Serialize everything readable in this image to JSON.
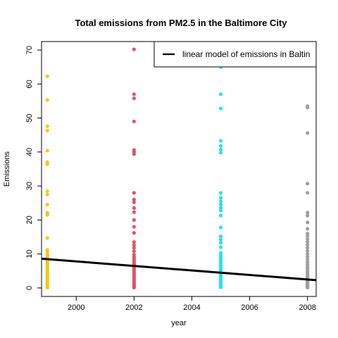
{
  "chart_data": {
    "type": "scatter",
    "title": "Total emissions from PM2.5 in the Baltimore City",
    "xlabel": "year",
    "ylabel": "Emissions",
    "xlim": [
      1998.8,
      2008.3
    ],
    "ylim": [
      -2.5,
      72.5
    ],
    "xticks": [
      2000,
      2002,
      2004,
      2006,
      2008
    ],
    "yticks": [
      0,
      10,
      20,
      30,
      40,
      50,
      60,
      70
    ],
    "grid": false,
    "legend": {
      "position": "top-right",
      "entries": [
        {
          "label": "linear model of emissions in Baltin",
          "color": "#000000"
        }
      ]
    },
    "series": [
      {
        "x": 1999,
        "color": "#F5C710",
        "values": [
          62.3,
          55.3,
          47.6,
          46.3,
          40.4,
          37.0,
          36.4,
          28.5,
          27.5,
          24.5,
          22.1,
          21.5,
          14.7,
          11.2,
          10.4,
          9.6,
          9.0,
          8.4,
          7.8,
          7.3,
          6.9,
          6.5,
          6.0,
          5.6,
          5.2,
          4.8,
          4.4,
          4.0,
          3.6,
          3.2,
          2.8,
          2.4,
          2.0,
          1.6,
          1.2,
          0.8,
          0.5,
          0.3,
          0.1
        ]
      },
      {
        "x": 2002,
        "color": "#DF536B",
        "values": [
          70.2,
          57.0,
          55.8,
          49.0,
          40.6,
          40.0,
          39.4,
          28.0,
          26.0,
          25.2,
          23.5,
          22.3,
          20.0,
          18.0,
          16.2,
          13.5,
          12.6,
          11.8,
          10.8,
          9.8,
          9.2,
          8.6,
          8.0,
          7.4,
          6.9,
          6.4,
          6.0,
          5.5,
          5.0,
          4.5,
          4.1,
          3.7,
          3.3,
          2.9,
          2.5,
          2.1,
          1.7,
          1.3,
          0.9,
          0.6,
          0.3,
          0.1
        ]
      },
      {
        "x": 2005,
        "color": "#28E2E5",
        "values": [
          65.0,
          57.0,
          52.8,
          43.3,
          41.8,
          40.7,
          39.8,
          28.0,
          26.5,
          25.5,
          24.6,
          23.6,
          22.8,
          21.3,
          17.8,
          15.2,
          14.2,
          13.3,
          12.0,
          10.3,
          9.6,
          9.0,
          8.4,
          7.8,
          7.2,
          6.6,
          6.0,
          5.5,
          5.0,
          4.5,
          4.0,
          3.6,
          3.2,
          2.8,
          2.4,
          2.0,
          1.6,
          1.2,
          0.8,
          0.5,
          0.2
        ]
      },
      {
        "x": 2008,
        "color": "#9E9E9E",
        "values": [
          53.5,
          53.1,
          45.6,
          30.7,
          28.0,
          22.2,
          21.3,
          19.3,
          17.4,
          16.0,
          15.3,
          14.4,
          13.6,
          12.7,
          11.8,
          10.9,
          10.0,
          9.2,
          8.4,
          7.6,
          6.9,
          6.2,
          5.6,
          5.0,
          4.5,
          4.0,
          3.5,
          3.1,
          2.7,
          2.3,
          1.9,
          1.5,
          1.2,
          0.9,
          0.6,
          0.3,
          0.1
        ]
      }
    ],
    "trend_line": {
      "x": [
        1998.8,
        2008.3
      ],
      "y": [
        8.6,
        2.3
      ],
      "color": "#000000"
    }
  }
}
